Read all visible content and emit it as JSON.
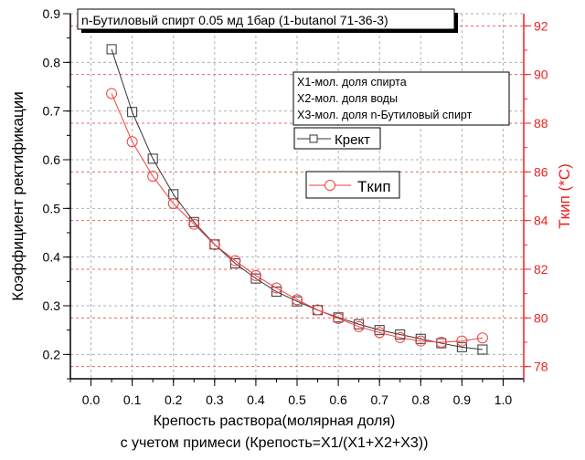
{
  "chart_data": {
    "type": "line",
    "title": "n-Бутиловый спирт 0.05 мд 1бар (1-butanol 71-36-3)",
    "xlabel_lines": [
      "Крепость раствора(молярная доля)",
      "с учетом примеси (Крепость=X1/(X1+X2+X3))"
    ],
    "ylabel": "Коэффициент ректификации",
    "y2label": "Tкип (*C)",
    "xlim": [
      -0.05,
      1.05
    ],
    "ylim": [
      0.15,
      0.9
    ],
    "y2lim": [
      77.5,
      92.5
    ],
    "x_ticks": [
      "0.0",
      "0.1",
      "0.2",
      "0.3",
      "0.4",
      "0.5",
      "0.6",
      "0.7",
      "0.8",
      "0.9",
      "1.0"
    ],
    "y_ticks": [
      "0.2",
      "0.3",
      "0.4",
      "0.5",
      "0.6",
      "0.7",
      "0.8",
      "0.9"
    ],
    "y2_ticks": [
      "78",
      "80",
      "82",
      "84",
      "86",
      "88",
      "90",
      "92"
    ],
    "grid": true,
    "note_lines": [
      "X1-мол. доля спирта",
      "X2-мол. доля воды",
      "X3-мол. доля n-Бутиловый спирт"
    ],
    "x": [
      0.05,
      0.1,
      0.15,
      0.2,
      0.25,
      0.3,
      0.35,
      0.4,
      0.45,
      0.5,
      0.55,
      0.6,
      0.65,
      0.7,
      0.75,
      0.8,
      0.85,
      0.9,
      0.95
    ],
    "series": [
      {
        "name": "Крект",
        "axis": "left",
        "marker": "square",
        "color": "#333333",
        "values": [
          0.827,
          0.698,
          0.602,
          0.529,
          0.472,
          0.426,
          0.387,
          0.356,
          0.329,
          0.309,
          0.291,
          0.276,
          0.262,
          0.25,
          0.241,
          0.232,
          0.223,
          0.215,
          0.21
        ]
      },
      {
        "name": "Tкип",
        "axis": "right",
        "marker": "circle",
        "color": "#f04040",
        "values": [
          89.22,
          87.24,
          85.82,
          84.7,
          83.85,
          83.01,
          82.35,
          81.74,
          81.23,
          80.75,
          80.33,
          79.98,
          79.64,
          79.4,
          79.19,
          79.05,
          79.0,
          79.05,
          79.18
        ]
      }
    ],
    "colors": {
      "left_axis": "#000000",
      "right_axis": "#ee2020",
      "grid_gray": "#b0b0b0",
      "grid_red": "#f06060"
    }
  }
}
